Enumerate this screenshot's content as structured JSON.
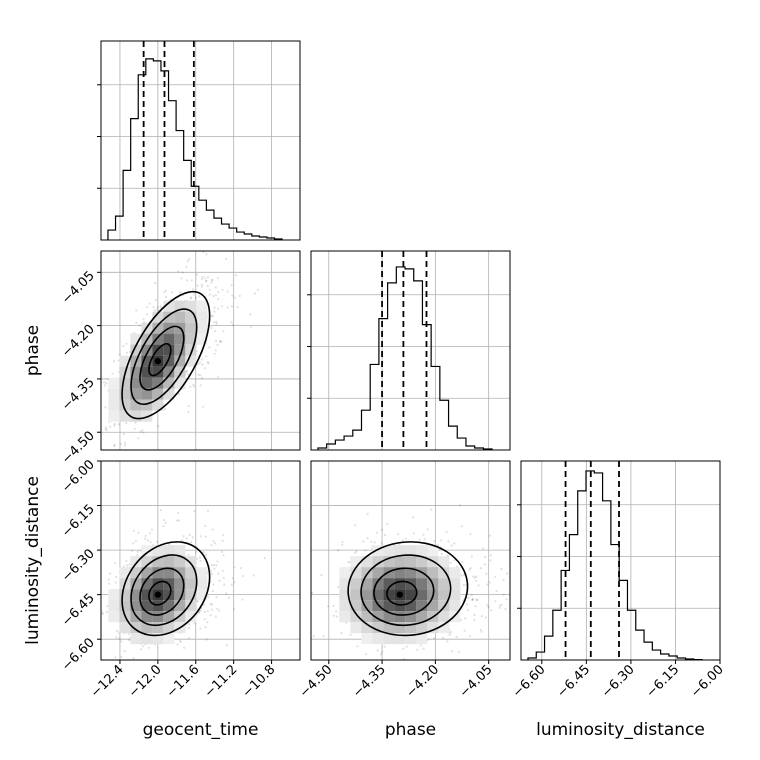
{
  "chart_data": {
    "type": "corner",
    "grid": true,
    "parameters": [
      {
        "name": "geocent_time",
        "axis_range": [
          -12.6,
          -10.5
        ],
        "ticks": [
          -12.4,
          -12.0,
          -11.6,
          -11.2,
          -10.8
        ],
        "tick_labels": [
          "−12.4",
          "−12.0",
          "−11.6",
          "−11.2",
          "−10.8"
        ],
        "quantiles": [
          -12.15,
          -11.93,
          -11.62
        ],
        "hist_counts": [
          0.05,
          0.12,
          0.35,
          0.61,
          0.83,
          0.91,
          0.9,
          0.85,
          0.7,
          0.55,
          0.4,
          0.27,
          0.2,
          0.15,
          0.11,
          0.08,
          0.06,
          0.04,
          0.03,
          0.02,
          0.015,
          0.01,
          0.005
        ]
      },
      {
        "name": "phase",
        "axis_range": [
          -4.55,
          -3.99
        ],
        "ticks": [
          -4.5,
          -4.35,
          -4.2,
          -4.05
        ],
        "tick_labels": [
          "−4.50",
          "−4.35",
          "−4.20",
          "−4.05"
        ],
        "quantiles": [
          -4.35,
          -4.29,
          -4.225
        ],
        "hist_counts": [
          0.01,
          0.03,
          0.05,
          0.07,
          0.1,
          0.2,
          0.43,
          0.66,
          0.84,
          0.92,
          0.91,
          0.85,
          0.63,
          0.42,
          0.25,
          0.12,
          0.06,
          0.02,
          0.01,
          0.005
        ]
      },
      {
        "name": "luminosity_distance",
        "axis_range": [
          -6.67,
          -6.0
        ],
        "ticks": [
          -6.6,
          -6.45,
          -6.3,
          -6.15,
          -6.0
        ],
        "tick_labels": [
          "−6.60",
          "−6.45",
          "−6.30",
          "−6.15",
          "−6.00"
        ],
        "quantiles": [
          -6.52,
          -6.435,
          -6.34
        ],
        "hist_counts": [
          0.01,
          0.04,
          0.12,
          0.25,
          0.45,
          0.63,
          0.85,
          0.95,
          0.94,
          0.8,
          0.58,
          0.4,
          0.25,
          0.15,
          0.09,
          0.05,
          0.03,
          0.02,
          0.01,
          0.005,
          0.002
        ]
      }
    ],
    "pairs": [
      {
        "x": "geocent_time",
        "y": "phase",
        "center": [
          -12.0,
          -4.3
        ],
        "spread": [
          0.22,
          0.085
        ],
        "correlation": 0.62
      },
      {
        "x": "geocent_time",
        "y": "luminosity_distance",
        "center": [
          -12.0,
          -6.45
        ],
        "spread": [
          0.22,
          0.075
        ],
        "correlation": 0.25
      },
      {
        "x": "phase",
        "y": "luminosity_distance",
        "center": [
          -4.3,
          -6.45
        ],
        "spread": [
          0.08,
          0.075
        ],
        "correlation": 0.05
      }
    ],
    "contour_levels_sigma": [
      0.5,
      1.0,
      1.5,
      2.0
    ]
  }
}
